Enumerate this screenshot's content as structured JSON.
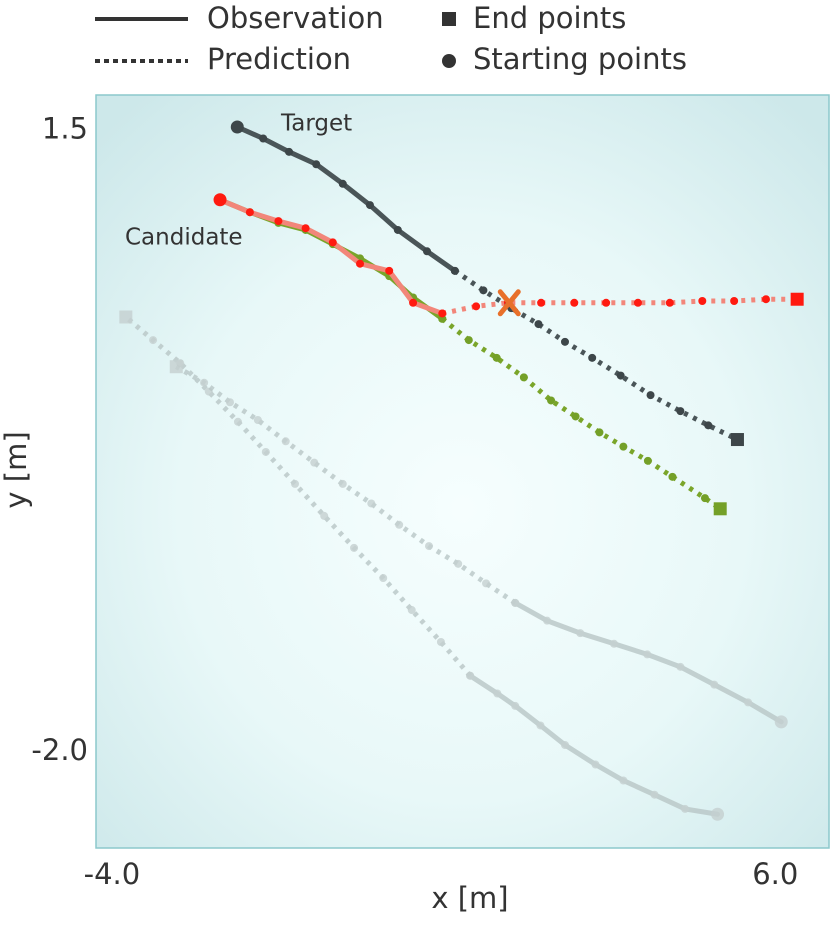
{
  "chart_data": {
    "type": "trajectory",
    "legend": [
      "Observation",
      "Prediction",
      "End points",
      "Starting points"
    ],
    "annotations": [
      "Target",
      "Candidate"
    ],
    "xlabel": "x [m]",
    "ylabel": "y [m]",
    "xlim": [
      -4.24,
      6.81
    ],
    "ylim": [
      -2.54,
      1.7
    ],
    "xticks": [
      {
        "value": -4.0,
        "label": "-4.0"
      },
      {
        "value": 6.0,
        "label": "6.0"
      }
    ],
    "yticks": [
      1.5,
      {
        "value": -2.0,
        "label": "-2.0"
      }
    ],
    "collision": {
      "x": 1.99,
      "y": 0.53,
      "color": "#e8702a"
    },
    "series": [
      {
        "color": "#b8c6c6",
        "dot_color": "#c4cfcf",
        "opacity": 0.8,
        "style": "solid",
        "start_marker": "circle",
        "x": [
          5.13,
          4.64,
          4.18,
          3.71,
          3.29,
          2.83,
          2.46,
          2.08,
          1.81,
          1.4
        ],
        "values": [
          -2.35,
          -2.32,
          -2.24,
          -2.16,
          -2.07,
          -1.96,
          -1.85,
          -1.74,
          -1.67,
          -1.57
        ]
      },
      {
        "color": "#b8c6c6",
        "dot_color": "#c4cfcf",
        "opacity": 0.8,
        "style": "dotted",
        "end_marker": "square",
        "x": [
          1.4,
          0.96,
          0.52,
          0.09,
          -0.35,
          -0.8,
          -1.24,
          -1.68,
          -2.1,
          -2.54,
          -2.97,
          -3.38,
          -3.79
        ],
        "values": [
          -1.57,
          -1.38,
          -1.2,
          -1.02,
          -0.85,
          -0.67,
          -0.49,
          -0.31,
          -0.14,
          0.03,
          0.19,
          0.32,
          0.45
        ]
      },
      {
        "color": "#b8c6c6",
        "dot_color": "#c4cfcf",
        "opacity": 0.8,
        "style": "solid",
        "start_marker": "circle",
        "x": [
          6.09,
          5.59,
          5.08,
          4.57,
          4.07,
          3.57,
          3.06,
          2.56,
          2.08
        ],
        "values": [
          -1.83,
          -1.72,
          -1.62,
          -1.52,
          -1.45,
          -1.39,
          -1.33,
          -1.26,
          -1.16
        ]
      },
      {
        "color": "#b8c6c6",
        "dot_color": "#c4cfcf",
        "opacity": 0.8,
        "style": "dotted",
        "end_marker": "square",
        "x": [
          2.08,
          1.64,
          1.22,
          0.78,
          0.33,
          -0.09,
          -0.52,
          -0.95,
          -1.38,
          -1.8,
          -2.22,
          -2.61,
          -3.03
        ],
        "values": [
          -1.16,
          -1.05,
          -0.94,
          -0.84,
          -0.72,
          -0.6,
          -0.49,
          -0.37,
          -0.25,
          -0.13,
          -0.03,
          0.08,
          0.17
        ]
      },
      {
        "color": "#f2867a",
        "dot_color": "#ff1a10",
        "opacity": 1,
        "style": "dotted",
        "end_marker": "square",
        "x": [
          0.98,
          1.49,
          1.97,
          2.47,
          2.97,
          3.45,
          3.93,
          4.41,
          4.9,
          5.38,
          5.86,
          6.33
        ],
        "values": [
          0.47,
          0.51,
          0.53,
          0.53,
          0.53,
          0.53,
          0.53,
          0.53,
          0.54,
          0.54,
          0.55,
          0.55
        ]
      },
      {
        "color": "#4a5558",
        "dot_color": "#3d4649",
        "opacity": 1,
        "style": "solid",
        "start_marker": "circle",
        "x": [
          -2.11,
          -1.72,
          -1.33,
          -0.92,
          -0.52,
          -0.11,
          0.31,
          0.75,
          1.17
        ],
        "values": [
          1.52,
          1.455,
          1.38,
          1.31,
          1.2,
          1.08,
          0.94,
          0.82,
          0.71
        ]
      },
      {
        "color": "#4a5558",
        "dot_color": "#3d4649",
        "opacity": 1,
        "style": "dotted",
        "end_marker": "square",
        "x": [
          1.17,
          1.6,
          2.02,
          2.43,
          2.83,
          3.24,
          3.67,
          4.12,
          4.57,
          4.99,
          5.43
        ],
        "values": [
          0.71,
          0.6,
          0.5,
          0.41,
          0.31,
          0.22,
          0.12,
          0.01,
          -0.08,
          -0.16,
          -0.24
        ]
      },
      {
        "color": "#7aa52a",
        "dot_color": "#74a028",
        "opacity": 1,
        "style": "solid",
        "x": [
          -2.37,
          -1.92,
          -1.49,
          -1.08,
          -0.67,
          -0.26,
          0.18,
          0.54,
          0.98
        ],
        "values": [
          1.11,
          1.04,
          0.98,
          0.94,
          0.86,
          0.78,
          0.68,
          0.56,
          0.44
        ]
      },
      {
        "color": "#7aa52a",
        "dot_color": "#74a028",
        "opacity": 1,
        "style": "dotted",
        "end_marker": "square",
        "x": [
          0.98,
          1.38,
          1.8,
          2.21,
          2.62,
          2.99,
          3.35,
          3.71,
          4.08,
          4.45,
          4.94,
          5.17
        ],
        "values": [
          0.44,
          0.32,
          0.22,
          0.11,
          -0.02,
          -0.11,
          -0.2,
          -0.28,
          -0.36,
          -0.45,
          -0.57,
          -0.63
        ]
      },
      {
        "color": "#f2867a",
        "dot_color": "#ff1a10",
        "opacity": 1,
        "style": "solid",
        "start_marker": "circle",
        "x": [
          -2.37,
          -1.92,
          -1.49,
          -1.08,
          -0.67,
          -0.26,
          0.18,
          0.54,
          0.98
        ],
        "values": [
          1.11,
          1.04,
          0.99,
          0.95,
          0.87,
          0.75,
          0.71,
          0.53,
          0.47
        ]
      }
    ]
  }
}
